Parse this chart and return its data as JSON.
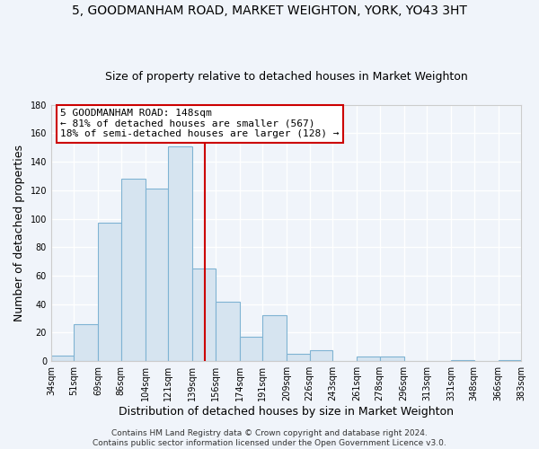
{
  "title": "5, GOODMANHAM ROAD, MARKET WEIGHTON, YORK, YO43 3HT",
  "subtitle": "Size of property relative to detached houses in Market Weighton",
  "xlabel": "Distribution of detached houses by size in Market Weighton",
  "ylabel": "Number of detached properties",
  "bar_edges": [
    34,
    51,
    69,
    86,
    104,
    121,
    139,
    156,
    174,
    191,
    209,
    226,
    243,
    261,
    278,
    296,
    313,
    331,
    348,
    366,
    383
  ],
  "bar_heights": [
    4,
    26,
    97,
    128,
    121,
    151,
    65,
    42,
    17,
    32,
    5,
    8,
    0,
    3,
    3,
    0,
    0,
    1,
    0,
    1
  ],
  "bar_color": "#d6e4f0",
  "bar_edge_color": "#7fb3d3",
  "reference_line_x": 148,
  "annotation_title": "5 GOODMANHAM ROAD: 148sqm",
  "annotation_line1": "← 81% of detached houses are smaller (567)",
  "annotation_line2": "18% of semi-detached houses are larger (128) →",
  "annotation_box_color": "#ffffff",
  "annotation_box_edge_color": "#cc0000",
  "ref_line_color": "#cc0000",
  "ylim": [
    0,
    180
  ],
  "yticks": [
    0,
    20,
    40,
    60,
    80,
    100,
    120,
    140,
    160,
    180
  ],
  "tick_labels": [
    "34sqm",
    "51sqm",
    "69sqm",
    "86sqm",
    "104sqm",
    "121sqm",
    "139sqm",
    "156sqm",
    "174sqm",
    "191sqm",
    "209sqm",
    "226sqm",
    "243sqm",
    "261sqm",
    "278sqm",
    "296sqm",
    "313sqm",
    "331sqm",
    "348sqm",
    "366sqm",
    "383sqm"
  ],
  "footer1": "Contains HM Land Registry data © Crown copyright and database right 2024.",
  "footer2": "Contains public sector information licensed under the Open Government Licence v3.0.",
  "bg_color": "#f0f4fa",
  "plot_bg_color": "#f0f4fa",
  "title_fontsize": 10,
  "subtitle_fontsize": 9,
  "axis_label_fontsize": 9,
  "tick_fontsize": 7,
  "annotation_fontsize": 8,
  "footer_fontsize": 6.5
}
